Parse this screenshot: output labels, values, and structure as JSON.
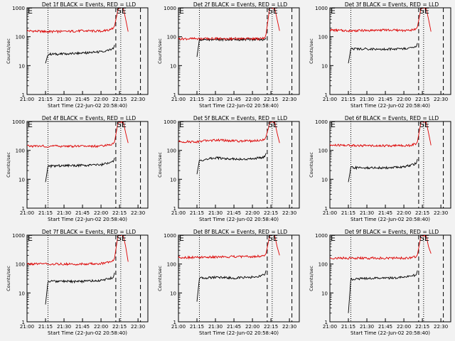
{
  "colors": {
    "background": "#f2f2f2",
    "events": "#000000",
    "lld": "#dd0000",
    "axis": "#000000"
  },
  "chart_data": [
    {
      "type": "line",
      "title": "Det 1f BLACK = Events, RED = LLD",
      "marker_e": "E",
      "marker_se": "SE",
      "xlabel": "Start Time (22-Jun-02 20:58:40)",
      "ylabel": "Counts/sec",
      "x_ticks": [
        "21:00",
        "21:15",
        "21:30",
        "21:45",
        "22:00",
        "22:15",
        "22:30"
      ],
      "y_ticks": [
        "1",
        "10",
        "100",
        "1000"
      ],
      "y_scale": "log",
      "ylim": [
        1,
        1000
      ],
      "event_start": "21:17",
      "se_lines": [
        "22:12",
        "22:16",
        "22:32"
      ],
      "series": [
        {
          "name": "Events",
          "times": [
            "21:15",
            "21:17",
            "21:30",
            "21:45",
            "22:00",
            "22:05",
            "22:10",
            "22:11"
          ],
          "values": [
            12,
            25,
            25,
            27,
            30,
            33,
            38,
            52
          ]
        },
        {
          "name": "LLD",
          "times": [
            "21:00",
            "21:15",
            "21:30",
            "21:45",
            "22:00",
            "22:05",
            "22:10",
            "22:11",
            "22:13",
            "22:14",
            "22:18",
            "22:20",
            "22:22"
          ],
          "values": [
            160,
            150,
            150,
            160,
            155,
            165,
            200,
            240,
            600,
            1000,
            1000,
            400,
            150
          ]
        }
      ]
    },
    {
      "type": "line",
      "title": "Det 2f BLACK = Events, RED = LLD",
      "marker_e": "E",
      "marker_se": "SE",
      "xlabel": "Start Time (22-Jun-02 20:58:40)",
      "ylabel": "Counts/sec",
      "x_ticks": [
        "21:00",
        "21:15",
        "21:30",
        "21:45",
        "22:00",
        "22:15",
        "22:30"
      ],
      "y_ticks": [
        "1",
        "10",
        "100",
        "1000"
      ],
      "y_scale": "log",
      "ylim": [
        1,
        1000
      ],
      "event_start": "21:17",
      "se_lines": [
        "22:12",
        "22:16",
        "22:32"
      ],
      "series": [
        {
          "name": "Events",
          "times": [
            "21:15",
            "21:17",
            "21:30",
            "21:45",
            "22:00",
            "22:05",
            "22:10",
            "22:11"
          ],
          "values": [
            20,
            80,
            80,
            80,
            80,
            80,
            80,
            90
          ]
        },
        {
          "name": "LLD",
          "times": [
            "21:00",
            "21:15",
            "21:30",
            "21:45",
            "22:00",
            "22:05",
            "22:10",
            "22:11",
            "22:13",
            "22:14",
            "22:18",
            "22:20",
            "22:22"
          ],
          "values": [
            85,
            85,
            85,
            85,
            85,
            85,
            90,
            120,
            500,
            1000,
            1000,
            400,
            160
          ]
        }
      ]
    },
    {
      "type": "line",
      "title": "Det 3f BLACK = Events, RED = LLD",
      "marker_e": "E",
      "marker_se": "SE",
      "xlabel": "Start Time (22-Jun-02 20:58:40)",
      "ylabel": "Counts/sec",
      "x_ticks": [
        "21:00",
        "21:15",
        "21:30",
        "21:45",
        "22:00",
        "22:15",
        "22:30"
      ],
      "y_ticks": [
        "1",
        "10",
        "100",
        "1000"
      ],
      "y_scale": "log",
      "ylim": [
        1,
        1000
      ],
      "event_start": "21:17",
      "se_lines": [
        "22:12",
        "22:16",
        "22:32"
      ],
      "series": [
        {
          "name": "Events",
          "times": [
            "21:15",
            "21:17",
            "21:30",
            "21:45",
            "22:00",
            "22:05",
            "22:10",
            "22:11"
          ],
          "values": [
            12,
            38,
            38,
            37,
            38,
            40,
            45,
            60
          ]
        },
        {
          "name": "LLD",
          "times": [
            "21:00",
            "21:15",
            "21:30",
            "21:45",
            "22:00",
            "22:05",
            "22:10",
            "22:11",
            "22:13",
            "22:14",
            "22:18",
            "22:20",
            "22:22"
          ],
          "values": [
            170,
            160,
            165,
            170,
            165,
            170,
            190,
            220,
            600,
            1000,
            1000,
            400,
            150
          ]
        }
      ]
    },
    {
      "type": "line",
      "title": "Det 4f BLACK = Events, RED = LLD",
      "marker_e": "E",
      "marker_se": "SE",
      "xlabel": "Start Time (22-Jun-02 20:58:40)",
      "ylabel": "Counts/sec",
      "x_ticks": [
        "21:00",
        "21:15",
        "21:30",
        "21:45",
        "22:00",
        "22:15",
        "22:30"
      ],
      "y_ticks": [
        "1",
        "10",
        "100",
        "1000"
      ],
      "y_scale": "log",
      "ylim": [
        1,
        1000
      ],
      "event_start": "21:17",
      "se_lines": [
        "22:12",
        "22:16",
        "22:32"
      ],
      "series": [
        {
          "name": "Events",
          "times": [
            "21:15",
            "21:17",
            "21:30",
            "21:45",
            "22:00",
            "22:05",
            "22:10",
            "22:11"
          ],
          "values": [
            8,
            28,
            30,
            30,
            32,
            35,
            40,
            55
          ]
        },
        {
          "name": "LLD",
          "times": [
            "21:00",
            "21:15",
            "21:30",
            "21:45",
            "22:00",
            "22:05",
            "22:10",
            "22:11",
            "22:13",
            "22:14",
            "22:18",
            "22:20",
            "22:22"
          ],
          "values": [
            140,
            140,
            140,
            140,
            140,
            150,
            170,
            200,
            600,
            1000,
            1000,
            400,
            180
          ]
        }
      ]
    },
    {
      "type": "line",
      "title": "Det 5f BLACK = Events, RED = LLD",
      "marker_e": "E",
      "marker_se": "SE",
      "xlabel": "Start Time (22-Jun-02 20:58:40)",
      "ylabel": "Counts/sec",
      "x_ticks": [
        "21:00",
        "21:15",
        "21:30",
        "21:45",
        "22:00",
        "22:15",
        "22:30"
      ],
      "y_ticks": [
        "1",
        "10",
        "100",
        "1000"
      ],
      "y_scale": "log",
      "ylim": [
        1,
        1000
      ],
      "event_start": "21:17",
      "se_lines": [
        "22:12",
        "22:16",
        "22:32"
      ],
      "series": [
        {
          "name": "Events",
          "times": [
            "21:15",
            "21:17",
            "21:30",
            "21:45",
            "22:00",
            "22:05",
            "22:10",
            "22:11"
          ],
          "values": [
            15,
            45,
            55,
            50,
            50,
            55,
            60,
            80
          ]
        },
        {
          "name": "LLD",
          "times": [
            "21:00",
            "21:15",
            "21:30",
            "21:45",
            "22:00",
            "22:05",
            "22:10",
            "22:11",
            "22:13",
            "22:14",
            "22:18",
            "22:20",
            "22:22"
          ],
          "values": [
            200,
            200,
            230,
            210,
            210,
            220,
            240,
            300,
            600,
            1000,
            1000,
            400,
            180
          ]
        }
      ]
    },
    {
      "type": "line",
      "title": "Det 6f BLACK = Events, RED = LLD",
      "marker_e": "E",
      "marker_se": "SE",
      "xlabel": "Start Time (22-Jun-02 20:58:40)",
      "ylabel": "Counts/sec",
      "x_ticks": [
        "21:00",
        "21:15",
        "21:30",
        "21:45",
        "22:00",
        "22:15",
        "22:30"
      ],
      "y_ticks": [
        "1",
        "10",
        "100",
        "1000"
      ],
      "y_scale": "log",
      "ylim": [
        1,
        1000
      ],
      "event_start": "21:17",
      "se_lines": [
        "22:12",
        "22:16",
        "22:32"
      ],
      "series": [
        {
          "name": "Events",
          "times": [
            "21:15",
            "21:17",
            "21:30",
            "21:45",
            "22:00",
            "22:05",
            "22:10",
            "22:11"
          ],
          "values": [
            8,
            25,
            25,
            25,
            27,
            30,
            35,
            50
          ]
        },
        {
          "name": "LLD",
          "times": [
            "21:00",
            "21:15",
            "21:30",
            "21:45",
            "22:00",
            "22:05",
            "22:10",
            "22:11",
            "22:13",
            "22:14",
            "22:18",
            "22:20",
            "22:22"
          ],
          "values": [
            150,
            150,
            145,
            145,
            145,
            150,
            170,
            200,
            600,
            1000,
            1000,
            400,
            150
          ]
        }
      ]
    },
    {
      "type": "line",
      "title": "Det 7f BLACK = Events, RED = LLD",
      "marker_e": "E",
      "marker_se": "SE",
      "xlabel": "Start Time (22-Jun-02 20:58:40)",
      "ylabel": "Counts/sec",
      "x_ticks": [
        "21:00",
        "21:15",
        "21:30",
        "21:45",
        "22:00",
        "22:15",
        "22:30"
      ],
      "y_ticks": [
        "1",
        "10",
        "100",
        "1000"
      ],
      "y_scale": "log",
      "ylim": [
        1,
        1000
      ],
      "event_start": "21:17",
      "se_lines": [
        "22:12",
        "22:16",
        "22:32"
      ],
      "series": [
        {
          "name": "Events",
          "times": [
            "21:15",
            "21:17",
            "21:30",
            "21:45",
            "22:00",
            "22:05",
            "22:10",
            "22:11"
          ],
          "values": [
            4,
            25,
            25,
            25,
            27,
            30,
            35,
            50
          ]
        },
        {
          "name": "LLD",
          "times": [
            "21:00",
            "21:15",
            "21:30",
            "21:45",
            "22:00",
            "22:05",
            "22:10",
            "22:11",
            "22:13",
            "22:14",
            "22:18",
            "22:20",
            "22:22"
          ],
          "values": [
            100,
            100,
            100,
            100,
            105,
            110,
            130,
            160,
            600,
            1000,
            1000,
            400,
            120
          ]
        }
      ]
    },
    {
      "type": "line",
      "title": "Det 8f BLACK = Events, RED = LLD",
      "marker_e": "E",
      "marker_se": "SE",
      "xlabel": "Start Time (22-Jun-02 20:58:40)",
      "ylabel": "Counts/sec",
      "x_ticks": [
        "21:00",
        "21:15",
        "21:30",
        "21:45",
        "22:00",
        "22:15",
        "22:30"
      ],
      "y_ticks": [
        "1",
        "10",
        "100",
        "1000"
      ],
      "y_scale": "log",
      "ylim": [
        1,
        1000
      ],
      "event_start": "21:17",
      "se_lines": [
        "22:12",
        "22:16",
        "22:32"
      ],
      "series": [
        {
          "name": "Events",
          "times": [
            "21:15",
            "21:17",
            "21:30",
            "21:45",
            "22:00",
            "22:05",
            "22:10",
            "22:11"
          ],
          "values": [
            5,
            32,
            35,
            33,
            35,
            38,
            42,
            60
          ]
        },
        {
          "name": "LLD",
          "times": [
            "21:00",
            "21:15",
            "21:30",
            "21:45",
            "22:00",
            "22:05",
            "22:10",
            "22:11",
            "22:13",
            "22:14",
            "22:18",
            "22:20",
            "22:22"
          ],
          "values": [
            170,
            170,
            175,
            180,
            180,
            185,
            200,
            230,
            600,
            1000,
            1000,
            400,
            200
          ]
        }
      ]
    },
    {
      "type": "line",
      "title": "Det 9f BLACK = Events, RED = LLD",
      "marker_e": "E",
      "marker_se": "SE",
      "xlabel": "Start Time (22-Jun-02 20:58:40)",
      "ylabel": "Counts/sec",
      "x_ticks": [
        "21:00",
        "21:15",
        "21:30",
        "21:45",
        "22:00",
        "22:15",
        "22:30"
      ],
      "y_ticks": [
        "1",
        "10",
        "100",
        "1000"
      ],
      "y_scale": "log",
      "ylim": [
        1,
        1000
      ],
      "event_start": "21:17",
      "se_lines": [
        "22:12",
        "22:16",
        "22:32"
      ],
      "series": [
        {
          "name": "Events",
          "times": [
            "21:15",
            "21:17",
            "21:30",
            "21:45",
            "22:00",
            "22:05",
            "22:10",
            "22:11"
          ],
          "values": [
            2,
            30,
            32,
            32,
            35,
            38,
            42,
            60
          ]
        },
        {
          "name": "LLD",
          "times": [
            "21:00",
            "21:15",
            "21:30",
            "21:45",
            "22:00",
            "22:05",
            "22:10",
            "22:11",
            "22:13",
            "22:14",
            "22:18",
            "22:20",
            "22:22"
          ],
          "values": [
            160,
            160,
            160,
            160,
            160,
            165,
            180,
            210,
            600,
            1000,
            1000,
            400,
            230
          ]
        }
      ]
    }
  ]
}
